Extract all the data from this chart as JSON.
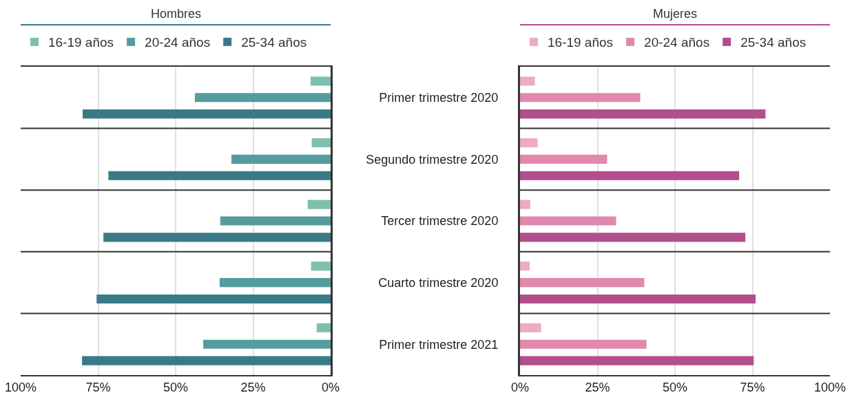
{
  "chart_data": [
    {
      "type": "bar",
      "orientation": "horizontal",
      "title": "Hombres",
      "categories": [
        null,
        null,
        null,
        null,
        null
      ],
      "series": [
        {
          "name": "16-19 años",
          "color": "#7fbfb0",
          "values": [
            6.5,
            6.1,
            7.4,
            6.3,
            4.5
          ]
        },
        {
          "name": "20-24 años",
          "color": "#549c9e",
          "values": [
            43.8,
            32,
            35.6,
            35.8,
            41.1
          ]
        },
        {
          "name": "25-34 años",
          "color": "#3a7a87",
          "values": [
            80,
            71.7,
            73.3,
            75.5,
            80.2
          ]
        }
      ],
      "xlim": [
        100,
        0
      ],
      "xticks": [
        {
          "value": 100,
          "label": "100%"
        },
        {
          "value": 75,
          "label": "75%"
        },
        {
          "value": 50,
          "label": "50%"
        },
        {
          "value": 25,
          "label": "25%"
        },
        {
          "value": 0,
          "label": "0%"
        }
      ],
      "grid": "x",
      "legend": "top",
      "tick_labels": "x"
    },
    {
      "type": "bar",
      "orientation": "horizontal",
      "title": "Mujeres",
      "categories": [
        "Primer trimestre 2020",
        "Segundo trimestre 2020",
        "Tercer trimestre 2020",
        "Cuarto trimestre 2020",
        "Primer trimestre 2021"
      ],
      "series": [
        {
          "name": "16-19 años",
          "color": "#ecacc0",
          "values": [
            4.8,
            5.7,
            3.3,
            3.1,
            6.8
          ]
        },
        {
          "name": "20-24 años",
          "color": "#e089ad",
          "values": [
            38.8,
            28.1,
            31,
            40.1,
            40.8
          ]
        },
        {
          "name": "25-34 años",
          "color": "#b14e8c",
          "values": [
            79.2,
            70.7,
            72.7,
            76,
            75.4
          ]
        }
      ],
      "xlim": [
        0,
        100
      ],
      "xticks": [
        {
          "value": 0,
          "label": "0%"
        },
        {
          "value": 25,
          "label": "25%"
        },
        {
          "value": 50,
          "label": "50%"
        },
        {
          "value": 75,
          "label": "75%"
        },
        {
          "value": 100,
          "label": "100%"
        }
      ],
      "grid": "x",
      "legend": "top"
    }
  ]
}
